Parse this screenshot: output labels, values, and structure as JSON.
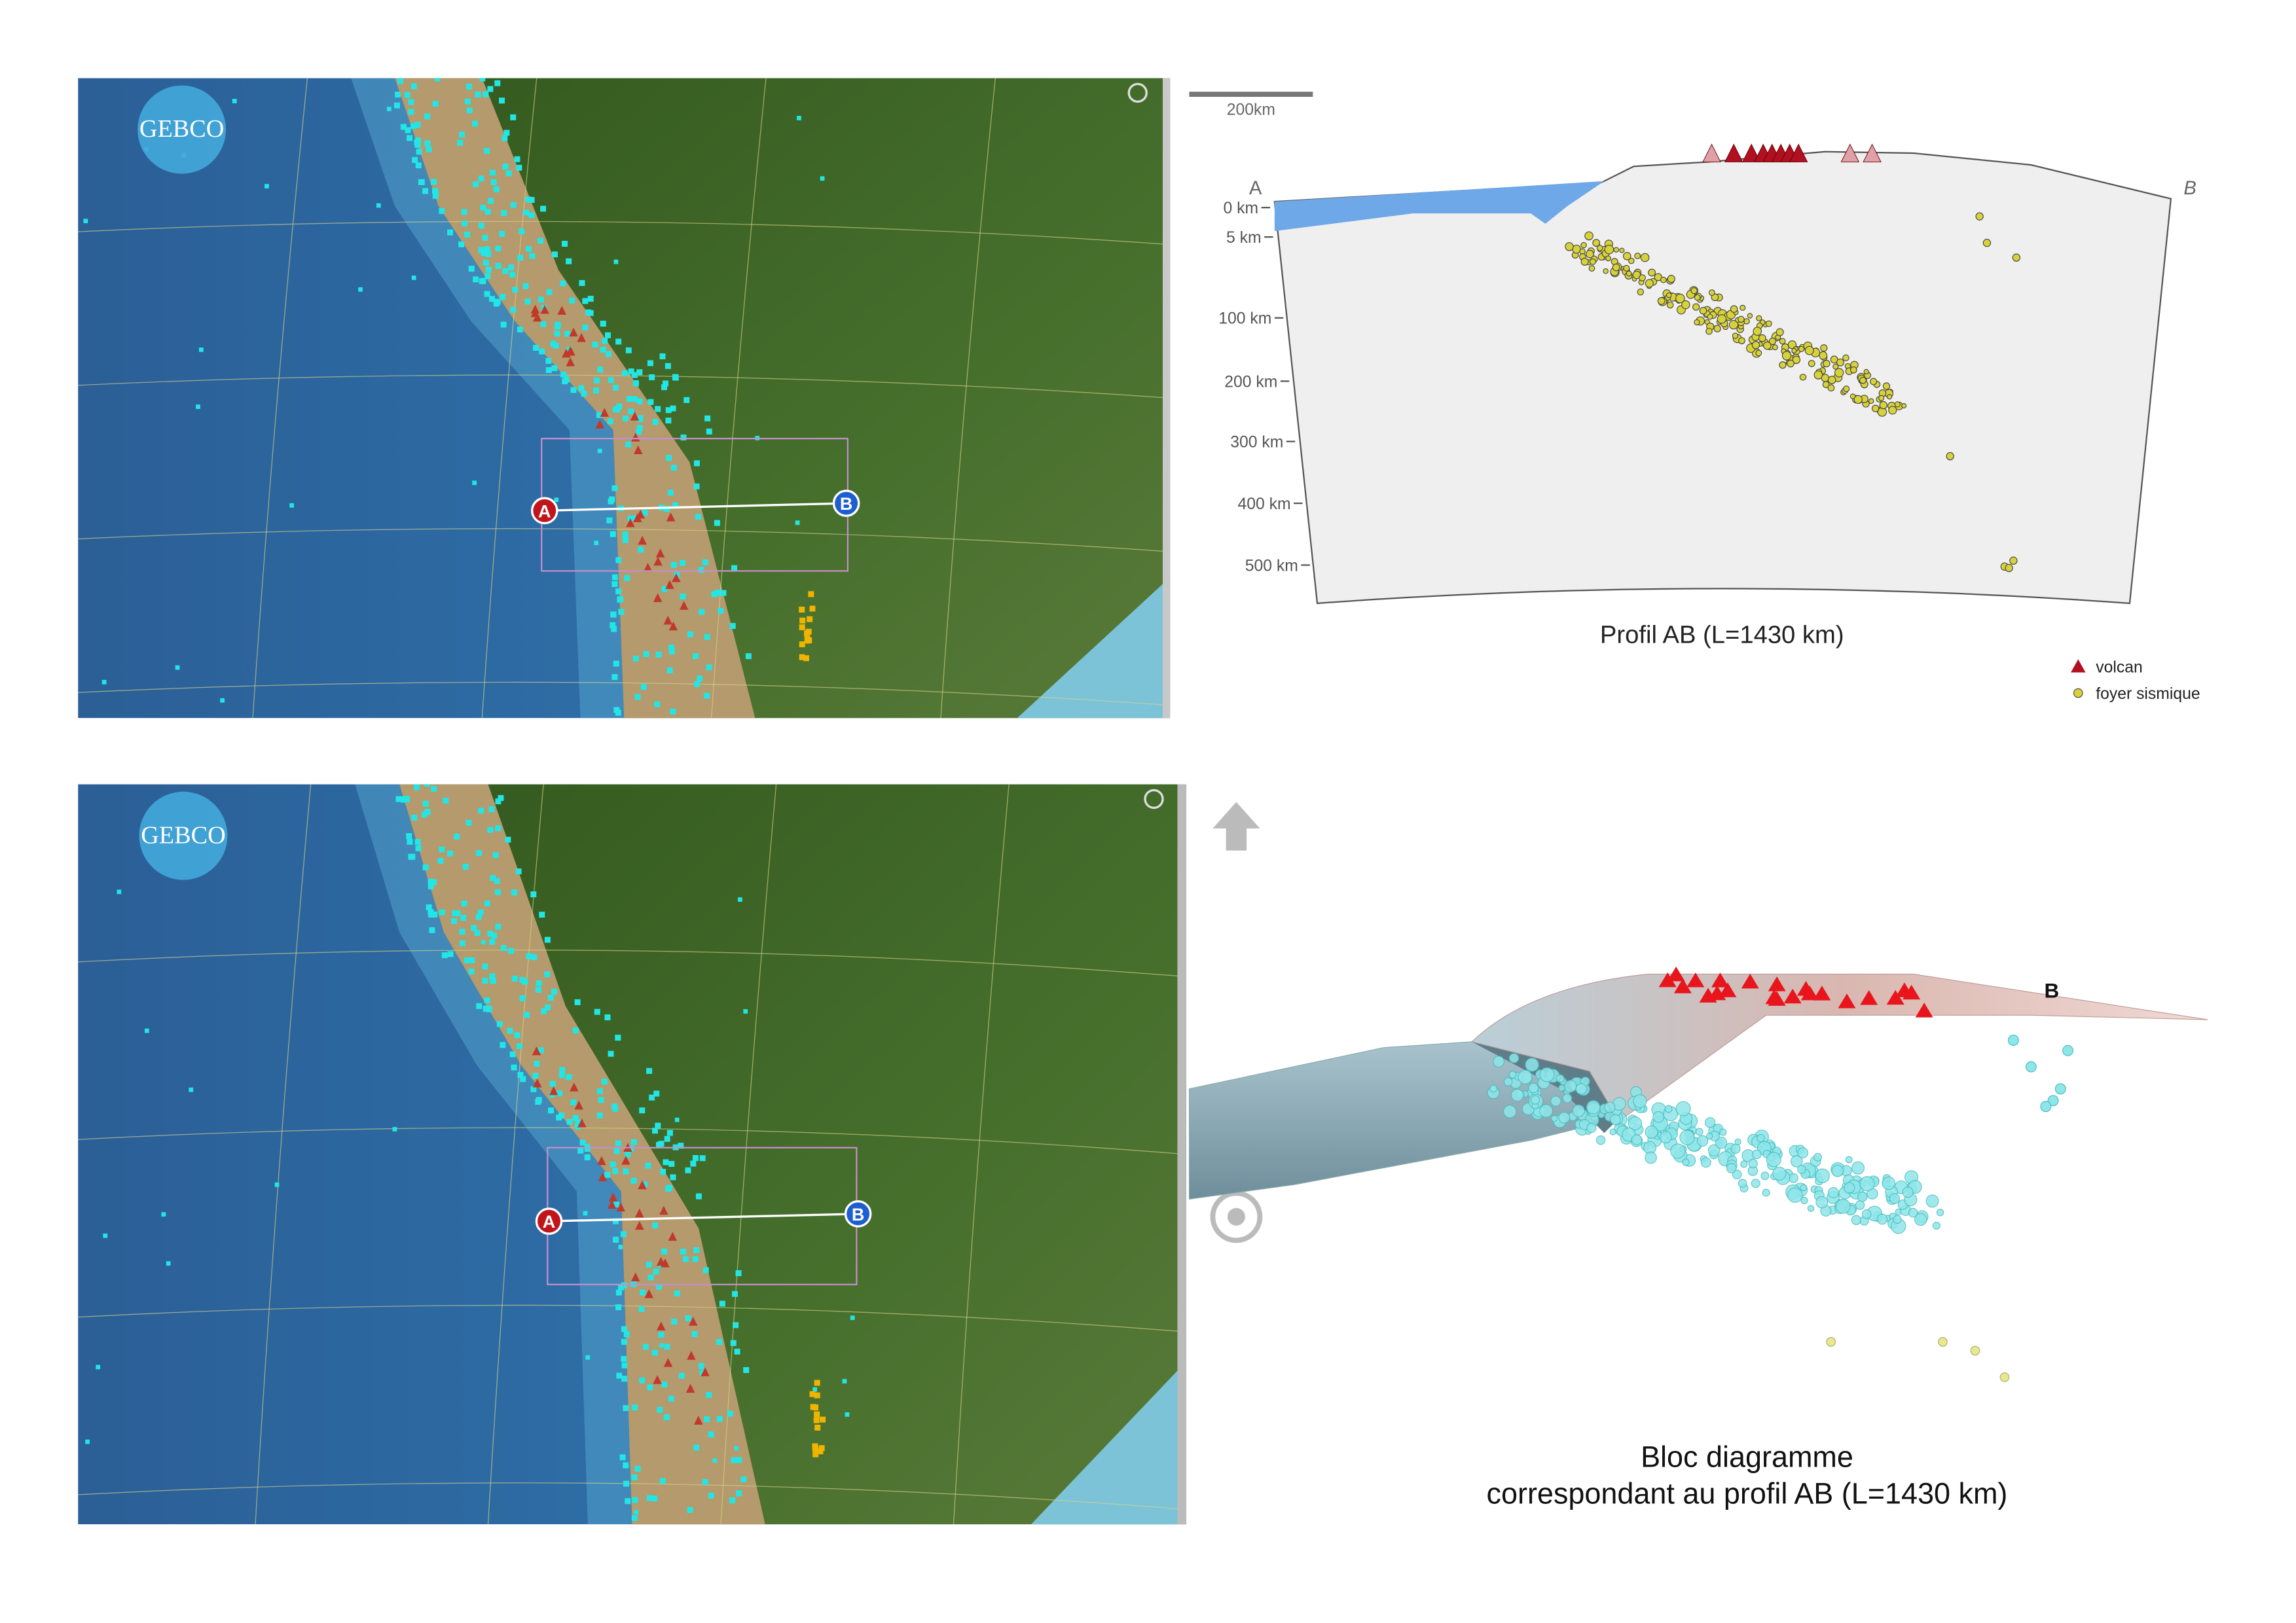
{
  "maps": [
    {
      "logo": "GEBCO",
      "point_a": "A",
      "point_b": "B"
    },
    {
      "logo": "GEBCO",
      "point_a": "A",
      "point_b": "B"
    }
  ],
  "profile": {
    "scale": "200km",
    "end_a": "A",
    "end_b": "B",
    "depths": [
      "0 km",
      "5 km",
      "100 km",
      "200 km",
      "300 km",
      "400 km",
      "500 km"
    ],
    "title": "Profil AB (L=1430 km)",
    "legend": [
      "volcan",
      "foyer sismique"
    ]
  },
  "block": {
    "end_b": "B",
    "title": [
      "Bloc diagramme",
      "correspondant au profil AB (L=1430 km)"
    ]
  }
}
